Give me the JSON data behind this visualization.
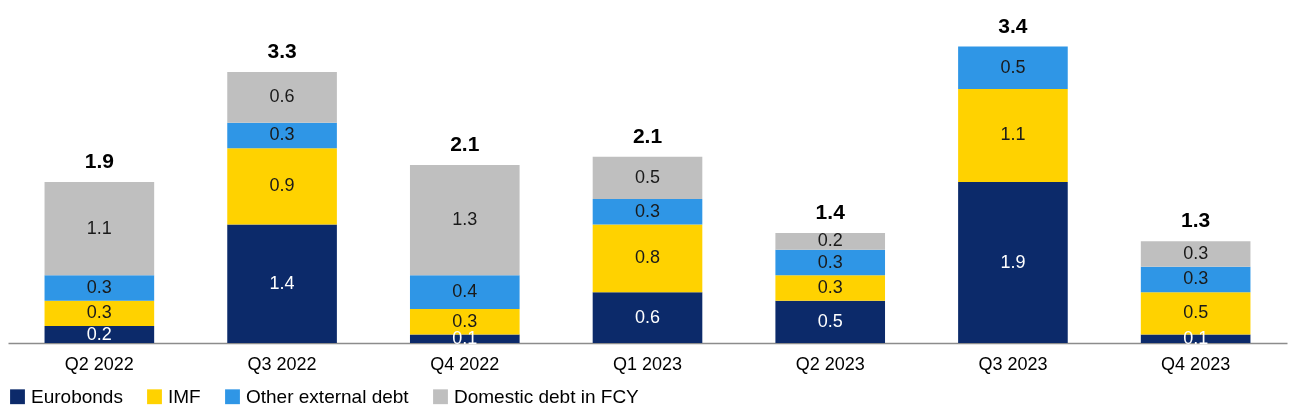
{
  "chart_data": {
    "type": "bar",
    "stacked": true,
    "categories": [
      "Q2 2022",
      "Q3 2022",
      "Q4 2022",
      "Q1 2023",
      "Q2 2023",
      "Q3 2023",
      "Q4 2023"
    ],
    "series": [
      {
        "name": "Eurobonds",
        "color": "#0c2a6a",
        "values": [
          0.2,
          1.4,
          0.1,
          0.6,
          0.5,
          1.9,
          0.1
        ]
      },
      {
        "name": "IMF",
        "color": "#ffd200",
        "values": [
          0.3,
          0.9,
          0.3,
          0.8,
          0.3,
          1.1,
          0.5
        ]
      },
      {
        "name": "Other external debt",
        "color": "#2f96e6",
        "values": [
          0.3,
          0.3,
          0.4,
          0.3,
          0.3,
          0.5,
          0.3
        ]
      },
      {
        "name": "Domestic debt in FCY",
        "color": "#bfbfbf",
        "values": [
          1.1,
          0.6,
          1.3,
          0.5,
          0.2,
          null,
          0.3
        ]
      }
    ],
    "data_labels": true,
    "totals": [
      "1.9",
      "3.3",
      "2.1",
      "2.1",
      "1.4",
      "3.4",
      "1.3"
    ],
    "legend": "bottom",
    "grid": false
  }
}
